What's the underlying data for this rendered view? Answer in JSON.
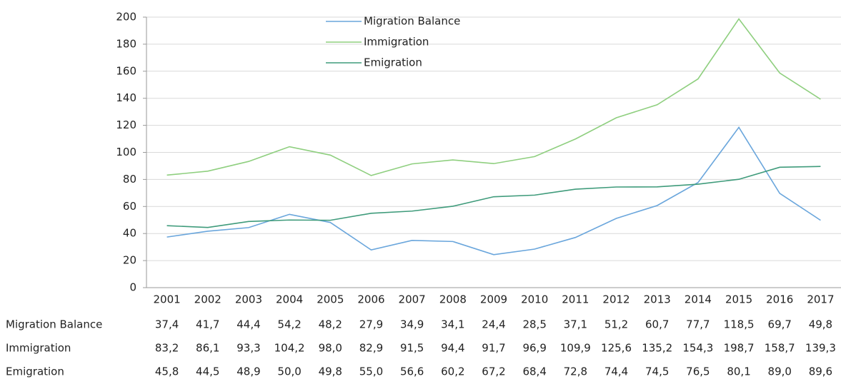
{
  "chart_data": {
    "type": "line",
    "categories": [
      "2001",
      "2002",
      "2003",
      "2004",
      "2005",
      "2006",
      "2007",
      "2008",
      "2009",
      "2010",
      "2011",
      "2012",
      "2013",
      "2014",
      "2015",
      "2016",
      "2017"
    ],
    "series": [
      {
        "name": "Migration Balance",
        "color": "#6aa6dc",
        "values": [
          37.4,
          41.7,
          44.4,
          54.2,
          48.2,
          27.9,
          34.9,
          34.1,
          24.4,
          28.5,
          37.1,
          51.2,
          60.7,
          77.7,
          118.5,
          69.7,
          49.8
        ],
        "value_labels": [
          "37,4",
          "41,7",
          "44,4",
          "54,2",
          "48,2",
          "27,9",
          "34,9",
          "34,1",
          "24,4",
          "28,5",
          "37,1",
          "51,2",
          "60,7",
          "77,7",
          "118,5",
          "69,7",
          "49,8"
        ]
      },
      {
        "name": "Immigration",
        "color": "#8fcf7f",
        "values": [
          83.2,
          86.1,
          93.3,
          104.2,
          98.0,
          82.9,
          91.5,
          94.4,
          91.7,
          96.9,
          109.9,
          125.6,
          135.2,
          154.3,
          198.7,
          158.7,
          139.3
        ],
        "value_labels": [
          "83,2",
          "86,1",
          "93,3",
          "104,2",
          "98,0",
          "82,9",
          "91,5",
          "94,4",
          "91,7",
          "96,9",
          "109,9",
          "125,6",
          "135,2",
          "154,3",
          "198,7",
          "158,7",
          "139,3"
        ]
      },
      {
        "name": "Emigration",
        "color": "#3f9b7b",
        "values": [
          45.8,
          44.5,
          48.9,
          50.0,
          49.8,
          55.0,
          56.6,
          60.2,
          67.2,
          68.4,
          72.8,
          74.4,
          74.5,
          76.5,
          80.1,
          89.0,
          89.6
        ],
        "value_labels": [
          "45,8",
          "44,5",
          "48,9",
          "50,0",
          "49,8",
          "55,0",
          "56,6",
          "60,2",
          "67,2",
          "68,4",
          "72,8",
          "74,4",
          "74,5",
          "76,5",
          "80,1",
          "89,0",
          "89,6"
        ]
      }
    ],
    "ylim": [
      0,
      200
    ],
    "yticks": [
      0,
      20,
      40,
      60,
      80,
      100,
      120,
      140,
      160,
      180,
      200
    ],
    "grid": true,
    "legend": "top"
  }
}
